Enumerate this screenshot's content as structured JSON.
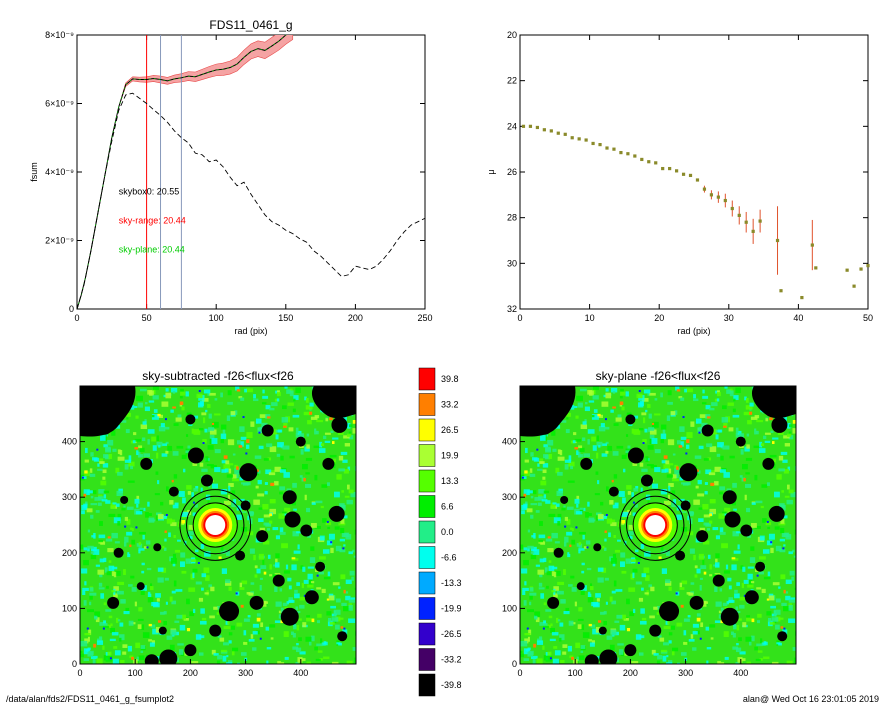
{
  "footer": {
    "path": "/data/alan/fds2/FDS11_0461_g_fsumplot2",
    "user_time": "alan@  Wed Oct 16 23:01:05 2019"
  },
  "colors": {
    "main_line": "#000000",
    "band_fill": "#f5a3a3",
    "band_edge": "#e84a4a",
    "sky_range": "#ff0000",
    "sky_plane": "#00cc00",
    "markers": "#8a8a2a",
    "errorbars": "#e0522c"
  },
  "chart_data": [
    {
      "id": "fsum",
      "type": "line",
      "title": "FDS11_0461_g",
      "xlabel": "rad (pix)",
      "ylabel": "fsum",
      "xlim": [
        0,
        250
      ],
      "ylim": [
        0,
        8e-09
      ],
      "xticks": [
        0,
        50,
        100,
        150,
        200,
        250
      ],
      "xtick_labels": [
        "0",
        "50",
        "100",
        "150",
        "200",
        "250"
      ],
      "yticks": [
        0,
        2e-09,
        4e-09,
        6e-09,
        8e-09
      ],
      "ytick_labels": [
        "0",
        "2×10⁻⁹",
        "4×10⁻⁹",
        "6×10⁻⁹",
        "8×10⁻⁹"
      ],
      "vlines": [
        {
          "x": 50,
          "color": "#ff0000"
        },
        {
          "x": 60,
          "color": "#8899bb"
        },
        {
          "x": 75,
          "color": "#8899bb"
        }
      ],
      "annotations": [
        {
          "text": "skybox0: 20.55",
          "color": "#000000",
          "x": 30,
          "y": 3.35e-09
        },
        {
          "text": "sky-range: 20.44",
          "color": "#ff0000",
          "x": 30,
          "y": 2.5e-09
        },
        {
          "text": "sky-plane: 20.44",
          "color": "#00cc00",
          "x": 30,
          "y": 1.65e-09
        }
      ],
      "series": [
        {
          "style": "solid-band",
          "x": [
            0,
            3,
            6,
            10,
            15,
            20,
            25,
            30,
            35,
            40,
            45,
            50,
            55,
            60,
            65,
            70,
            75,
            80,
            85,
            90,
            95,
            100,
            105,
            110,
            115,
            120,
            125,
            130,
            135,
            140,
            145,
            150,
            155
          ],
          "y": [
            0,
            4e-10,
            9e-10,
            1.7e-09,
            2.8e-09,
            3.9e-09,
            5e-09,
            5.9e-09,
            6.55e-09,
            6.72e-09,
            6.7e-09,
            6.7e-09,
            6.73e-09,
            6.7e-09,
            6.66e-09,
            6.72e-09,
            6.75e-09,
            6.8e-09,
            6.78e-09,
            6.85e-09,
            6.92e-09,
            6.98e-09,
            7e-09,
            7.05e-09,
            7.15e-09,
            7.35e-09,
            7.52e-09,
            7.6e-09,
            7.55e-09,
            7.68e-09,
            7.82e-09,
            8e-09,
            8.15e-09
          ],
          "err": [
            0,
            0,
            0,
            0,
            0,
            0,
            0,
            0,
            5e-11,
            6e-11,
            7e-11,
            8e-11,
            9e-11,
            1e-10,
            1e-10,
            1.1e-10,
            1.2e-10,
            1.3e-10,
            1.4e-10,
            1.5e-10,
            1.6e-10,
            1.7e-10,
            1.8e-10,
            1.9e-10,
            2e-10,
            2.1e-10,
            2.2e-10,
            2.3e-10,
            2.4e-10,
            2.5e-10,
            2.6e-10,
            2.7e-10,
            2.8e-10
          ]
        },
        {
          "style": "dashed",
          "x": [
            0,
            5,
            10,
            15,
            20,
            25,
            30,
            35,
            40,
            45,
            50,
            55,
            60,
            65,
            70,
            75,
            80,
            85,
            90,
            95,
            100,
            105,
            110,
            115,
            120,
            125,
            130,
            135,
            140,
            145,
            150,
            155,
            160,
            165,
            170,
            175,
            180,
            185,
            190,
            195,
            200,
            205,
            210,
            215,
            220,
            225,
            230,
            235,
            240,
            245,
            250
          ],
          "y": [
            0,
            7e-10,
            1.7e-09,
            2.8e-09,
            3.9e-09,
            4.9e-09,
            5.8e-09,
            6.25e-09,
            6.3e-09,
            6.15e-09,
            6e-09,
            5.82e-09,
            5.65e-09,
            5.45e-09,
            5.2e-09,
            5e-09,
            4.85e-09,
            4.55e-09,
            4.5e-09,
            4.3e-09,
            4.35e-09,
            4.15e-09,
            3.85e-09,
            3.6e-09,
            3.7e-09,
            3.35e-09,
            3.05e-09,
            2.75e-09,
            2.55e-09,
            2.45e-09,
            2.3e-09,
            2.2e-09,
            2.05e-09,
            1.95e-09,
            1.7e-09,
            1.55e-09,
            1.35e-09,
            1.15e-09,
            9.5e-10,
            1e-09,
            1.25e-09,
            1.2e-09,
            1.15e-09,
            1.25e-09,
            1.45e-09,
            1.7e-09,
            2e-09,
            2.25e-09,
            2.45e-09,
            2.55e-09,
            2.65e-09
          ]
        }
      ]
    },
    {
      "id": "mu",
      "type": "scatter",
      "xlabel": "rad (pix)",
      "ylabel": "μ",
      "xlim": [
        0,
        50
      ],
      "ylim": [
        32,
        20
      ],
      "xticks": [
        0,
        10,
        20,
        30,
        40,
        50
      ],
      "xtick_labels": [
        "0",
        "10",
        "20",
        "30",
        "40",
        "50"
      ],
      "yticks": [
        20,
        22,
        24,
        26,
        28,
        30,
        32
      ],
      "ytick_labels": [
        "20",
        "22",
        "24",
        "26",
        "28",
        "30",
        "32"
      ],
      "points": [
        {
          "x": 0.5,
          "y": 24.0
        },
        {
          "x": 1.5,
          "y": 24.0
        },
        {
          "x": 2.5,
          "y": 24.05
        },
        {
          "x": 3.5,
          "y": 24.15
        },
        {
          "x": 4.5,
          "y": 24.2
        },
        {
          "x": 5.5,
          "y": 24.3
        },
        {
          "x": 6.5,
          "y": 24.35
        },
        {
          "x": 7.5,
          "y": 24.5
        },
        {
          "x": 8.5,
          "y": 24.55
        },
        {
          "x": 9.5,
          "y": 24.6
        },
        {
          "x": 10.5,
          "y": 24.75
        },
        {
          "x": 11.5,
          "y": 24.8
        },
        {
          "x": 12.5,
          "y": 24.95
        },
        {
          "x": 13.5,
          "y": 25.0
        },
        {
          "x": 14.5,
          "y": 25.15
        },
        {
          "x": 15.5,
          "y": 25.2
        },
        {
          "x": 16.5,
          "y": 25.3
        },
        {
          "x": 17.5,
          "y": 25.45
        },
        {
          "x": 18.5,
          "y": 25.55
        },
        {
          "x": 19.5,
          "y": 25.6
        },
        {
          "x": 20.5,
          "y": 25.85
        },
        {
          "x": 21.5,
          "y": 25.85
        },
        {
          "x": 22.5,
          "y": 25.95
        },
        {
          "x": 23.5,
          "y": 26.1
        },
        {
          "x": 24.5,
          "y": 26.15
        },
        {
          "x": 25.5,
          "y": 26.35
        },
        {
          "x": 26.5,
          "y": 26.75,
          "err": 0.15
        },
        {
          "x": 27.5,
          "y": 27.0,
          "err": 0.2
        },
        {
          "x": 28.5,
          "y": 27.1,
          "err": 0.25
        },
        {
          "x": 29.5,
          "y": 27.25,
          "err": 0.3
        },
        {
          "x": 30.5,
          "y": 27.6,
          "err": 0.35
        },
        {
          "x": 31.5,
          "y": 27.9,
          "err": 0.4
        },
        {
          "x": 32.5,
          "y": 28.2,
          "err": 0.45
        },
        {
          "x": 33.5,
          "y": 28.6,
          "err": 0.55
        },
        {
          "x": 34.5,
          "y": 28.15,
          "err": 0.5
        },
        {
          "x": 37,
          "y": 29.0,
          "err": 1.5
        },
        {
          "x": 42,
          "y": 29.2,
          "err": 1.1
        },
        {
          "x": 37.5,
          "y": 31.2
        },
        {
          "x": 40.5,
          "y": 31.5
        },
        {
          "x": 42.5,
          "y": 30.2
        },
        {
          "x": 47,
          "y": 30.3
        },
        {
          "x": 48,
          "y": 31.0
        },
        {
          "x": 49,
          "y": 30.25
        },
        {
          "x": 50,
          "y": 30.1
        }
      ]
    },
    {
      "id": "map-left",
      "type": "heatmap",
      "title": "sky-subtracted -f26<flux<f26",
      "xlim": [
        0,
        500
      ],
      "ylim": [
        0,
        500
      ],
      "xticks": [
        0,
        100,
        200,
        300,
        400
      ],
      "xtick_labels": [
        "0",
        "100",
        "200",
        "300",
        "400"
      ],
      "yticks": [
        0,
        100,
        200,
        300,
        400
      ],
      "ytick_labels": [
        "0",
        "100",
        "200",
        "300",
        "400"
      ],
      "center": [
        245,
        250
      ],
      "ring_radii": [
        40,
        52,
        64
      ]
    },
    {
      "id": "map-right",
      "type": "heatmap",
      "title": "sky-plane -f26<flux<f26",
      "xlim": [
        0,
        500
      ],
      "ylim": [
        0,
        500
      ],
      "xticks": [
        0,
        100,
        200,
        300,
        400
      ],
      "xtick_labels": [
        "0",
        "100",
        "200",
        "300",
        "400"
      ],
      "yticks": [
        0,
        100,
        200,
        300,
        400
      ],
      "ytick_labels": [
        "0",
        "100",
        "200",
        "300",
        "400"
      ],
      "center": [
        245,
        250
      ],
      "ring_radii": [
        40,
        52,
        64
      ]
    },
    {
      "id": "colorbar",
      "type": "table",
      "labels": [
        "39.8",
        "33.2",
        "26.5",
        "19.9",
        "13.3",
        "6.6",
        "0.0",
        "-6.6",
        "-13.3",
        "-19.9",
        "-26.5",
        "-33.2",
        "-39.8"
      ],
      "colors": [
        "#ff0000",
        "#ff7f00",
        "#ffff00",
        "#aaff33",
        "#55ff00",
        "#00ee00",
        "#22ee88",
        "#00ffee",
        "#00aaff",
        "#0022ff",
        "#3300cc",
        "#440066",
        "#000000"
      ]
    }
  ]
}
